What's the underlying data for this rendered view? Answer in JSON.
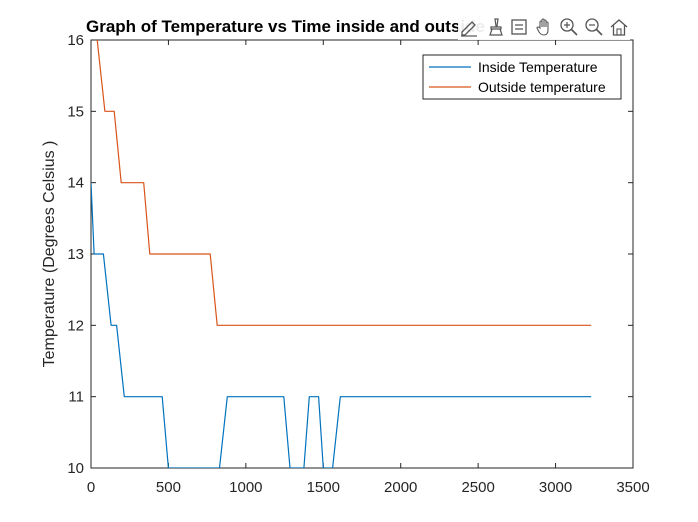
{
  "chart_data": {
    "type": "line",
    "title": "Graph of Temperature vs Time inside and outside",
    "xlabel": "",
    "ylabel": "Temperature (Degrees Celsius )",
    "xlim": [
      0,
      3500
    ],
    "ylim": [
      10,
      16
    ],
    "xticks": [
      0,
      500,
      1000,
      1500,
      2000,
      2500,
      3000,
      3500
    ],
    "yticks": [
      10,
      11,
      12,
      13,
      14,
      15,
      16
    ],
    "grid": false,
    "legend_position": "top-right",
    "series": [
      {
        "name": "Inside Temperature",
        "color": "#0072BD",
        "x": [
          0,
          20,
          80,
          130,
          165,
          215,
          460,
          500,
          830,
          880,
          1245,
          1285,
          1375,
          1410,
          1470,
          1500,
          1560,
          1610,
          3230
        ],
        "y": [
          14,
          13,
          13,
          12,
          12,
          11,
          11,
          10,
          10,
          11,
          11,
          10,
          10,
          11,
          11,
          10,
          10,
          11,
          11
        ]
      },
      {
        "name": "Outside temperature",
        "color": "#D95319",
        "x": [
          0,
          40,
          90,
          150,
          195,
          340,
          380,
          770,
          815,
          3230
        ],
        "y": [
          17,
          16,
          15,
          15,
          14,
          14,
          13,
          13,
          12,
          12
        ]
      }
    ]
  },
  "toolbar": {
    "icons": [
      "edit-plot-icon",
      "brush-icon",
      "data-tip-icon",
      "pan-hand-icon",
      "zoom-in-icon",
      "zoom-out-icon",
      "home-icon"
    ]
  }
}
